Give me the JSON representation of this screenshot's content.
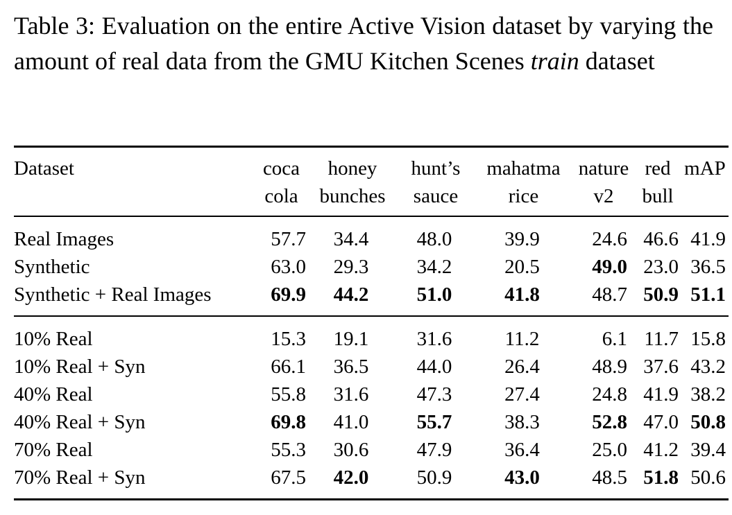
{
  "caption": {
    "prefix": "Table 3: Evaluation on the entire Active Vision dataset by varying the amount of real data from the GMU Kitchen Scenes",
    "italic": "train",
    "suffix": "dataset"
  },
  "table": {
    "header_top": [
      "Dataset",
      "coca",
      "honey",
      "hunt’s",
      "mahatma",
      "nature",
      "red",
      "mAP"
    ],
    "header_bottom": [
      "",
      "cola",
      "bunches",
      "sauce",
      "rice",
      "v2",
      "bull",
      ""
    ],
    "group1": [
      {
        "name": "Real Images",
        "values": [
          "57.7",
          "34.4",
          "48.0",
          "39.9",
          "24.6",
          "46.6",
          "41.9"
        ],
        "bold": [
          false,
          false,
          false,
          false,
          false,
          false,
          false
        ]
      },
      {
        "name": "Synthetic",
        "values": [
          "63.0",
          "29.3",
          "34.2",
          "20.5",
          "49.0",
          "23.0",
          "36.5"
        ],
        "bold": [
          false,
          false,
          false,
          false,
          true,
          false,
          false
        ]
      },
      {
        "name": "Synthetic + Real Images",
        "values": [
          "69.9",
          "44.2",
          "51.0",
          "41.8",
          "48.7",
          "50.9",
          "51.1"
        ],
        "bold": [
          true,
          true,
          true,
          true,
          false,
          true,
          true
        ]
      }
    ],
    "group2": [
      {
        "name": "10% Real",
        "values": [
          "15.3",
          "19.1",
          "31.6",
          "11.2",
          "6.1",
          "11.7",
          "15.8"
        ],
        "bold": [
          false,
          false,
          false,
          false,
          false,
          false,
          false
        ]
      },
      {
        "name": "10% Real + Syn",
        "values": [
          "66.1",
          "36.5",
          "44.0",
          "26.4",
          "48.9",
          "37.6",
          "43.2"
        ],
        "bold": [
          false,
          false,
          false,
          false,
          false,
          false,
          false
        ]
      },
      {
        "name": "40% Real",
        "values": [
          "55.8",
          "31.6",
          "47.3",
          "27.4",
          "24.8",
          "41.9",
          "38.2"
        ],
        "bold": [
          false,
          false,
          false,
          false,
          false,
          false,
          false
        ]
      },
      {
        "name": "40% Real + Syn",
        "values": [
          "69.8",
          "41.0",
          "55.7",
          "38.3",
          "52.8",
          "47.0",
          "50.8"
        ],
        "bold": [
          true,
          false,
          true,
          false,
          true,
          false,
          true
        ]
      },
      {
        "name": "70% Real",
        "values": [
          "55.3",
          "30.6",
          "47.9",
          "36.4",
          "25.0",
          "41.2",
          "39.4"
        ],
        "bold": [
          false,
          false,
          false,
          false,
          false,
          false,
          false
        ]
      },
      {
        "name": "70% Real + Syn",
        "values": [
          "67.5",
          "42.0",
          "50.9",
          "43.0",
          "48.5",
          "51.8",
          "50.6"
        ],
        "bold": [
          false,
          true,
          false,
          true,
          false,
          true,
          false
        ]
      }
    ]
  }
}
